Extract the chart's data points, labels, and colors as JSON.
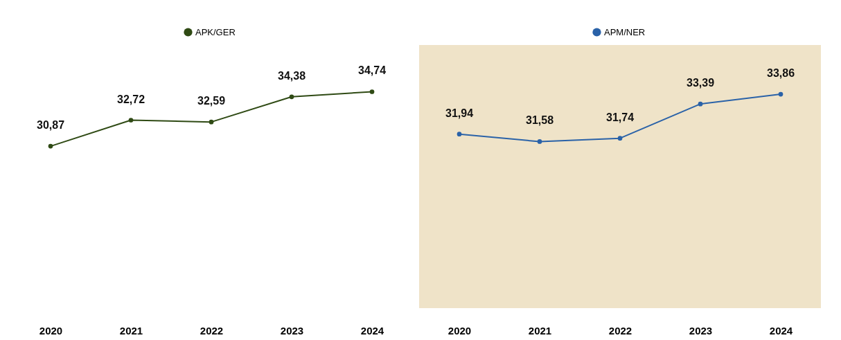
{
  "chart_data": [
    {
      "type": "line",
      "categories": [
        "2020",
        "2021",
        "2022",
        "2023",
        "2024"
      ],
      "series": [
        {
          "name": "APK/GER",
          "color": "#2f4a14",
          "values": [
            30.87,
            32.72,
            32.59,
            34.38,
            34.74
          ],
          "value_labels": [
            "30,87",
            "32,72",
            "32,59",
            "34,38",
            "34,74"
          ]
        }
      ],
      "legend": "top",
      "marker": "circle",
      "grid": false
    },
    {
      "type": "line",
      "categories": [
        "2020",
        "2021",
        "2022",
        "2023",
        "2024"
      ],
      "series": [
        {
          "name": "APM/NER",
          "color": "#2a62a8",
          "values": [
            31.94,
            31.58,
            31.74,
            33.39,
            33.86
          ],
          "value_labels": [
            "31,94",
            "31,58",
            "31,74",
            "33,39",
            "33,86"
          ]
        }
      ],
      "legend": "top",
      "marker": "circle",
      "grid": false
    }
  ]
}
